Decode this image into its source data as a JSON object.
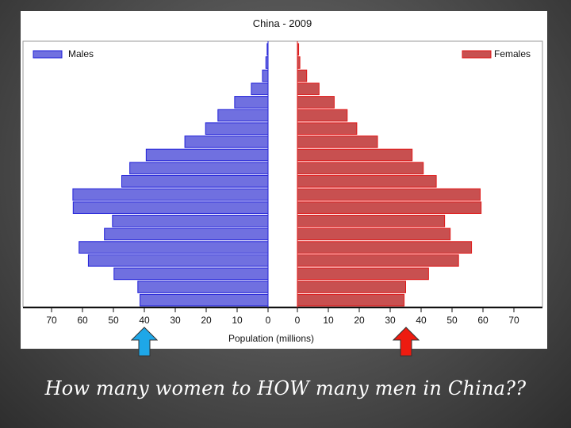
{
  "caption": "How many women to HOW many men in China??",
  "arrows": [
    {
      "name": "male-40-arrow",
      "side": "male",
      "value": 40,
      "color": "#1ea7e8"
    },
    {
      "name": "female-35-arrow",
      "side": "female",
      "value": 35,
      "color": "#ee1b10"
    }
  ],
  "chart_data": {
    "type": "bar",
    "title": "China - 2009",
    "xlabel": "Population (millions)",
    "legend": [
      {
        "name": "Males",
        "color": "#4646e6",
        "placement": "top-left"
      },
      {
        "name": "Females",
        "color": "#d93232",
        "placement": "top-right"
      }
    ],
    "xlim": [
      0,
      70
    ],
    "ticks": [
      0,
      10,
      20,
      30,
      40,
      50,
      60,
      70
    ],
    "colors": {
      "male_fill": "#7070e0",
      "male_stroke": "#2020d8",
      "female_fill": "#c85050",
      "female_stroke": "#e01818"
    },
    "series": [
      {
        "name": "Males",
        "values": [
          0.3,
          0.7,
          1.8,
          5.4,
          10.8,
          16.2,
          20.2,
          26.9,
          39.4,
          44.7,
          47.3,
          63.1,
          63.0,
          50.3,
          52.9,
          61.1,
          58.1,
          49.8,
          42.1,
          41.4
        ]
      },
      {
        "name": "Females",
        "values": [
          0.4,
          0.8,
          3.0,
          7.0,
          11.9,
          16.1,
          19.2,
          25.9,
          37.1,
          40.7,
          44.9,
          59.1,
          59.4,
          47.6,
          49.4,
          56.3,
          52.1,
          42.4,
          35.0,
          34.5
        ]
      }
    ]
  }
}
